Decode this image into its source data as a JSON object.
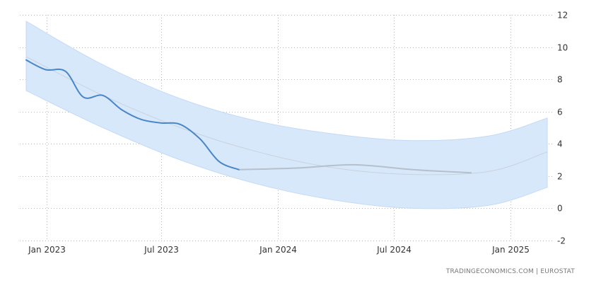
{
  "chart_data": {
    "type": "line",
    "x_axis": {
      "type": "date",
      "ticks": [
        {
          "date": "2023-01-01",
          "label": "Jan 2023"
        },
        {
          "date": "2023-07-01",
          "label": "Jul 2023"
        },
        {
          "date": "2024-01-01",
          "label": "Jan 2024"
        },
        {
          "date": "2024-07-01",
          "label": "Jul 2024"
        },
        {
          "date": "2025-01-01",
          "label": "Jan 2025"
        }
      ],
      "range": [
        "2022-11-20",
        "2025-03-10"
      ]
    },
    "y_axis": {
      "position": "right",
      "range": [
        -2,
        12
      ],
      "ticks": [
        -2,
        0,
        2,
        4,
        6,
        8,
        10,
        12
      ]
    },
    "grid": true,
    "series": [
      {
        "role": "actual",
        "color": "#4a86c8",
        "points": [
          {
            "x": "2022-11-30",
            "y": 9.2
          },
          {
            "x": "2022-12-31",
            "y": 8.6
          },
          {
            "x": "2023-01-31",
            "y": 8.5
          },
          {
            "x": "2023-02-28",
            "y": 6.9
          },
          {
            "x": "2023-03-31",
            "y": 7.0
          },
          {
            "x": "2023-04-30",
            "y": 6.1
          },
          {
            "x": "2023-05-31",
            "y": 5.5
          },
          {
            "x": "2023-06-30",
            "y": 5.3
          },
          {
            "x": "2023-07-31",
            "y": 5.2
          },
          {
            "x": "2023-08-31",
            "y": 4.3
          },
          {
            "x": "2023-09-30",
            "y": 2.9
          },
          {
            "x": "2023-10-31",
            "y": 2.4
          }
        ]
      },
      {
        "role": "forecast",
        "color": "#b4c0cc",
        "points": [
          {
            "x": "2023-10-31",
            "y": 2.4
          },
          {
            "x": "2024-01-31",
            "y": 2.5
          },
          {
            "x": "2024-04-30",
            "y": 2.7
          },
          {
            "x": "2024-07-31",
            "y": 2.4
          },
          {
            "x": "2024-10-31",
            "y": 2.2
          }
        ]
      },
      {
        "role": "trend",
        "color": "#c8d2dc",
        "points": [
          {
            "x": "2022-11-30",
            "y": 9.4
          },
          {
            "x": "2023-03-31",
            "y": 7.0
          },
          {
            "x": "2023-07-31",
            "y": 5.0
          },
          {
            "x": "2023-11-30",
            "y": 3.5
          },
          {
            "x": "2024-03-31",
            "y": 2.5
          },
          {
            "x": "2024-07-31",
            "y": 2.1
          },
          {
            "x": "2024-11-30",
            "y": 2.3
          },
          {
            "x": "2025-02-28",
            "y": 3.5
          }
        ]
      }
    ],
    "band": {
      "color": "#d6e7fb",
      "upper": [
        {
          "x": "2022-11-30",
          "y": 11.6
        },
        {
          "x": "2023-03-31",
          "y": 8.9
        },
        {
          "x": "2023-07-31",
          "y": 6.8
        },
        {
          "x": "2023-11-30",
          "y": 5.4
        },
        {
          "x": "2024-03-31",
          "y": 4.6
        },
        {
          "x": "2024-07-31",
          "y": 4.2
        },
        {
          "x": "2024-11-30",
          "y": 4.5
        },
        {
          "x": "2025-02-28",
          "y": 5.6
        }
      ],
      "lower": [
        {
          "x": "2022-11-30",
          "y": 7.3
        },
        {
          "x": "2023-03-31",
          "y": 5.0
        },
        {
          "x": "2023-07-31",
          "y": 3.0
        },
        {
          "x": "2023-11-30",
          "y": 1.5
        },
        {
          "x": "2024-03-31",
          "y": 0.5
        },
        {
          "x": "2024-07-31",
          "y": 0.0
        },
        {
          "x": "2024-11-30",
          "y": 0.2
        },
        {
          "x": "2025-02-28",
          "y": 1.3
        }
      ]
    }
  },
  "source_label": "TRADINGECONOMICS.COM  |  EUROSTAT"
}
